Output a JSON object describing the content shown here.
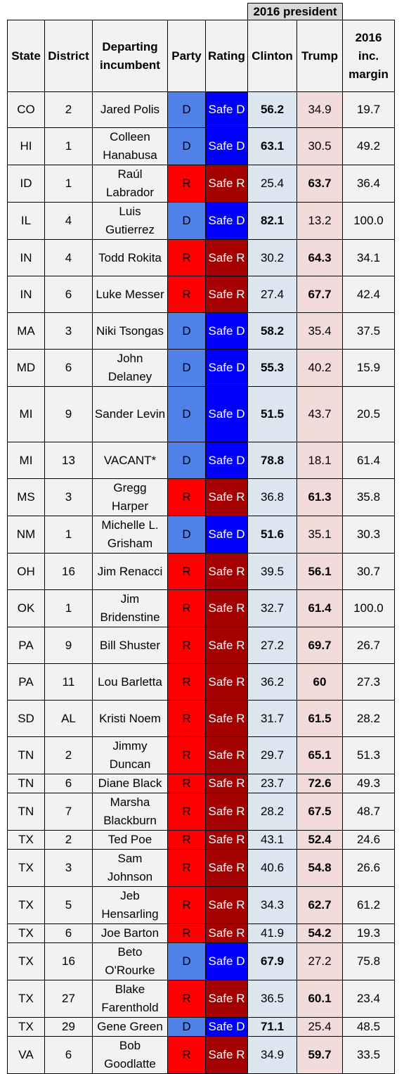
{
  "header": {
    "group_label": "2016 president",
    "columns": [
      "State",
      "District",
      "Departing incumbent",
      "Party",
      "Rating",
      "Clinton",
      "Trump",
      "2016 inc. margin"
    ]
  },
  "rows": [
    {
      "state": "CO",
      "district": "2",
      "incumbent": "Jared Polis",
      "party": "D",
      "rating": "Safe D",
      "clinton": "56.2",
      "trump": "34.9",
      "margin": "19.7"
    },
    {
      "state": "HI",
      "district": "1",
      "incumbent": "Colleen Hanabusa",
      "party": "D",
      "rating": "Safe D",
      "clinton": "63.1",
      "trump": "30.5",
      "margin": "49.2"
    },
    {
      "state": "ID",
      "district": "1",
      "incumbent": "Raúl Labrador",
      "party": "R",
      "rating": "Safe R",
      "clinton": "25.4",
      "trump": "63.7",
      "margin": "36.4"
    },
    {
      "state": "IL",
      "district": "4",
      "incumbent": "Luis Gutierrez",
      "party": "D",
      "rating": "Safe D",
      "clinton": "82.1",
      "trump": "13.2",
      "margin": "100.0"
    },
    {
      "state": "IN",
      "district": "4",
      "incumbent": "Todd Rokita",
      "party": "R",
      "rating": "Safe R",
      "clinton": "30.2",
      "trump": "64.3",
      "margin": "34.1"
    },
    {
      "state": "IN",
      "district": "6",
      "incumbent": "Luke Messer",
      "party": "R",
      "rating": "Safe R",
      "clinton": "27.4",
      "trump": "67.7",
      "margin": "42.4"
    },
    {
      "state": "MA",
      "district": "3",
      "incumbent": "Niki Tsongas",
      "party": "D",
      "rating": "Safe D",
      "clinton": "58.2",
      "trump": "35.4",
      "margin": "37.5"
    },
    {
      "state": "MD",
      "district": "6",
      "incumbent": "John Delaney",
      "party": "D",
      "rating": "Safe D",
      "clinton": "55.3",
      "trump": "40.2",
      "margin": "15.9"
    },
    {
      "state": "MI",
      "district": "9",
      "incumbent": "Sander Levin",
      "party": "D",
      "rating": "Safe D",
      "clinton": "51.5",
      "trump": "43.7",
      "margin": "20.5"
    },
    {
      "state": "MI",
      "district": "13",
      "incumbent": "VACANT*",
      "party": "D",
      "rating": "Safe D",
      "clinton": "78.8",
      "trump": "18.1",
      "margin": "61.4"
    },
    {
      "state": "MS",
      "district": "3",
      "incumbent": "Gregg Harper",
      "party": "R",
      "rating": "Safe R",
      "clinton": "36.8",
      "trump": "61.3",
      "margin": "35.8"
    },
    {
      "state": "NM",
      "district": "1",
      "incumbent": "Michelle L. Grisham",
      "party": "D",
      "rating": "Safe D",
      "clinton": "51.6",
      "trump": "35.1",
      "margin": "30.3"
    },
    {
      "state": "OH",
      "district": "16",
      "incumbent": "Jim Renacci",
      "party": "R",
      "rating": "Safe R",
      "clinton": "39.5",
      "trump": "56.1",
      "margin": "30.7"
    },
    {
      "state": "OK",
      "district": "1",
      "incumbent": "Jim Bridenstine",
      "party": "R",
      "rating": "Safe R",
      "clinton": "32.7",
      "trump": "61.4",
      "margin": "100.0"
    },
    {
      "state": "PA",
      "district": "9",
      "incumbent": "Bill Shuster",
      "party": "R",
      "rating": "Safe R",
      "clinton": "27.2",
      "trump": "69.7",
      "margin": "26.7"
    },
    {
      "state": "PA",
      "district": "11",
      "incumbent": "Lou Barletta",
      "party": "R",
      "rating": "Safe R",
      "clinton": "36.2",
      "trump": "60",
      "margin": "27.3"
    },
    {
      "state": "SD",
      "district": "AL",
      "incumbent": "Kristi Noem",
      "party": "R",
      "rating": "Safe R",
      "clinton": "31.7",
      "trump": "61.5",
      "margin": "28.2"
    },
    {
      "state": "TN",
      "district": "2",
      "incumbent": "Jimmy Duncan",
      "party": "R",
      "rating": "Safe R",
      "clinton": "29.7",
      "trump": "65.1",
      "margin": "51.3"
    },
    {
      "state": "TN",
      "district": "6",
      "incumbent": "Diane Black",
      "party": "R",
      "rating": "Safe R",
      "clinton": "23.7",
      "trump": "72.6",
      "margin": "49.3"
    },
    {
      "state": "TN",
      "district": "7",
      "incumbent": "Marsha Blackburn",
      "party": "R",
      "rating": "Safe R",
      "clinton": "28.2",
      "trump": "67.5",
      "margin": "48.7"
    },
    {
      "state": "TX",
      "district": "2",
      "incumbent": "Ted Poe",
      "party": "R",
      "rating": "Safe R",
      "clinton": "43.1",
      "trump": "52.4",
      "margin": "24.6"
    },
    {
      "state": "TX",
      "district": "3",
      "incumbent": "Sam Johnson",
      "party": "R",
      "rating": "Safe R",
      "clinton": "40.6",
      "trump": "54.8",
      "margin": "26.6"
    },
    {
      "state": "TX",
      "district": "5",
      "incumbent": "Jeb Hensarling",
      "party": "R",
      "rating": "Safe R",
      "clinton": "34.3",
      "trump": "62.7",
      "margin": "61.2"
    },
    {
      "state": "TX",
      "district": "6",
      "incumbent": "Joe Barton",
      "party": "R",
      "rating": "Safe R",
      "clinton": "41.9",
      "trump": "54.2",
      "margin": "19.3"
    },
    {
      "state": "TX",
      "district": "16",
      "incumbent": "Beto O'Rourke",
      "party": "D",
      "rating": "Safe D",
      "clinton": "67.9",
      "trump": "27.2",
      "margin": "75.8"
    },
    {
      "state": "TX",
      "district": "27",
      "incumbent": "Blake Farenthold",
      "party": "R",
      "rating": "Safe R",
      "clinton": "36.5",
      "trump": "60.1",
      "margin": "23.4"
    },
    {
      "state": "TX",
      "district": "29",
      "incumbent": "Gene Green",
      "party": "D",
      "rating": "Safe D",
      "clinton": "71.1",
      "trump": "25.4",
      "margin": "48.5"
    },
    {
      "state": "VA",
      "district": "6",
      "incumbent": "Bob Goodlatte",
      "party": "R",
      "rating": "Safe R",
      "clinton": "34.9",
      "trump": "59.7",
      "margin": "33.5"
    }
  ],
  "colors": {
    "party_D": "#4f81e8",
    "party_R": "#ff0000",
    "rating_D": "#0000ff",
    "rating_R": "#a50000",
    "clinton_bg": "#dce6f1",
    "trump_bg": "#f2dcdb"
  }
}
